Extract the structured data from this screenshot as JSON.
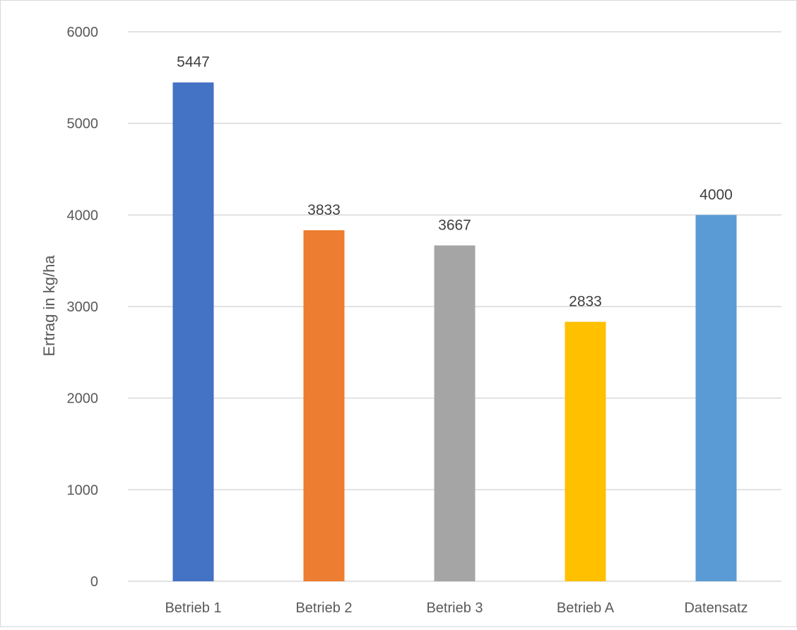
{
  "chart_data": {
    "type": "bar",
    "title": "",
    "xlabel": "",
    "ylabel": "Ertrag in kg/ha",
    "categories": [
      "Betrieb 1",
      "Betrieb 2",
      "Betrieb 3",
      "Betrieb A",
      "Datensatz"
    ],
    "values": [
      5447,
      3833,
      3667,
      2833,
      4000
    ],
    "data_labels": [
      "5447",
      "3833",
      "3667",
      "2833",
      "4000"
    ],
    "bar_colors": [
      "#4472c4",
      "#ed7d31",
      "#a5a5a5",
      "#ffc000",
      "#5b9bd5"
    ],
    "ylim": [
      0,
      6000
    ],
    "yticks": [
      0,
      1000,
      2000,
      3000,
      4000,
      5000,
      6000
    ],
    "ytick_labels": [
      "0",
      "1000",
      "2000",
      "3000",
      "4000",
      "5000",
      "6000"
    ],
    "grid": true,
    "legend": false
  }
}
